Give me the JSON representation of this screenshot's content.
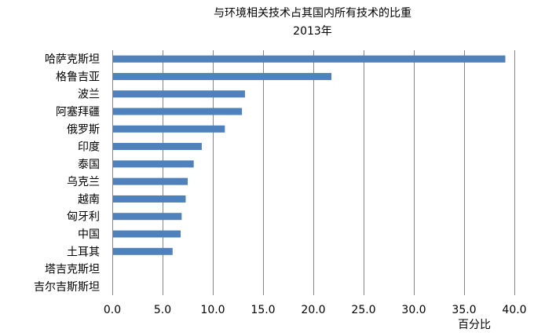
{
  "chart_data": {
    "type": "bar",
    "orientation": "horizontal",
    "title": "与环境相关技术占其国内所有技术的比重",
    "subtitle": "2013年",
    "xlabel": "百分比",
    "ylabel": "",
    "xlim": [
      0,
      40
    ],
    "xticks": [
      "0.0",
      "5.0",
      "10.0",
      "15.0",
      "20.0",
      "25.0",
      "30.0",
      "35.0",
      "40.0"
    ],
    "grid": true,
    "bar_color": "#4F81BD",
    "categories": [
      "哈萨克斯坦",
      "格鲁吉亚",
      "波兰",
      "阿塞拜疆",
      "俄罗斯",
      "印度",
      "泰国",
      "乌克兰",
      "越南",
      "匈牙利",
      "中国",
      "土耳其",
      "塔吉克斯坦",
      "吉尔吉斯斯坦"
    ],
    "values": [
      39.1,
      21.8,
      13.2,
      12.9,
      11.2,
      8.9,
      8.1,
      7.5,
      7.3,
      6.9,
      6.8,
      6.0,
      0,
      0
    ]
  }
}
